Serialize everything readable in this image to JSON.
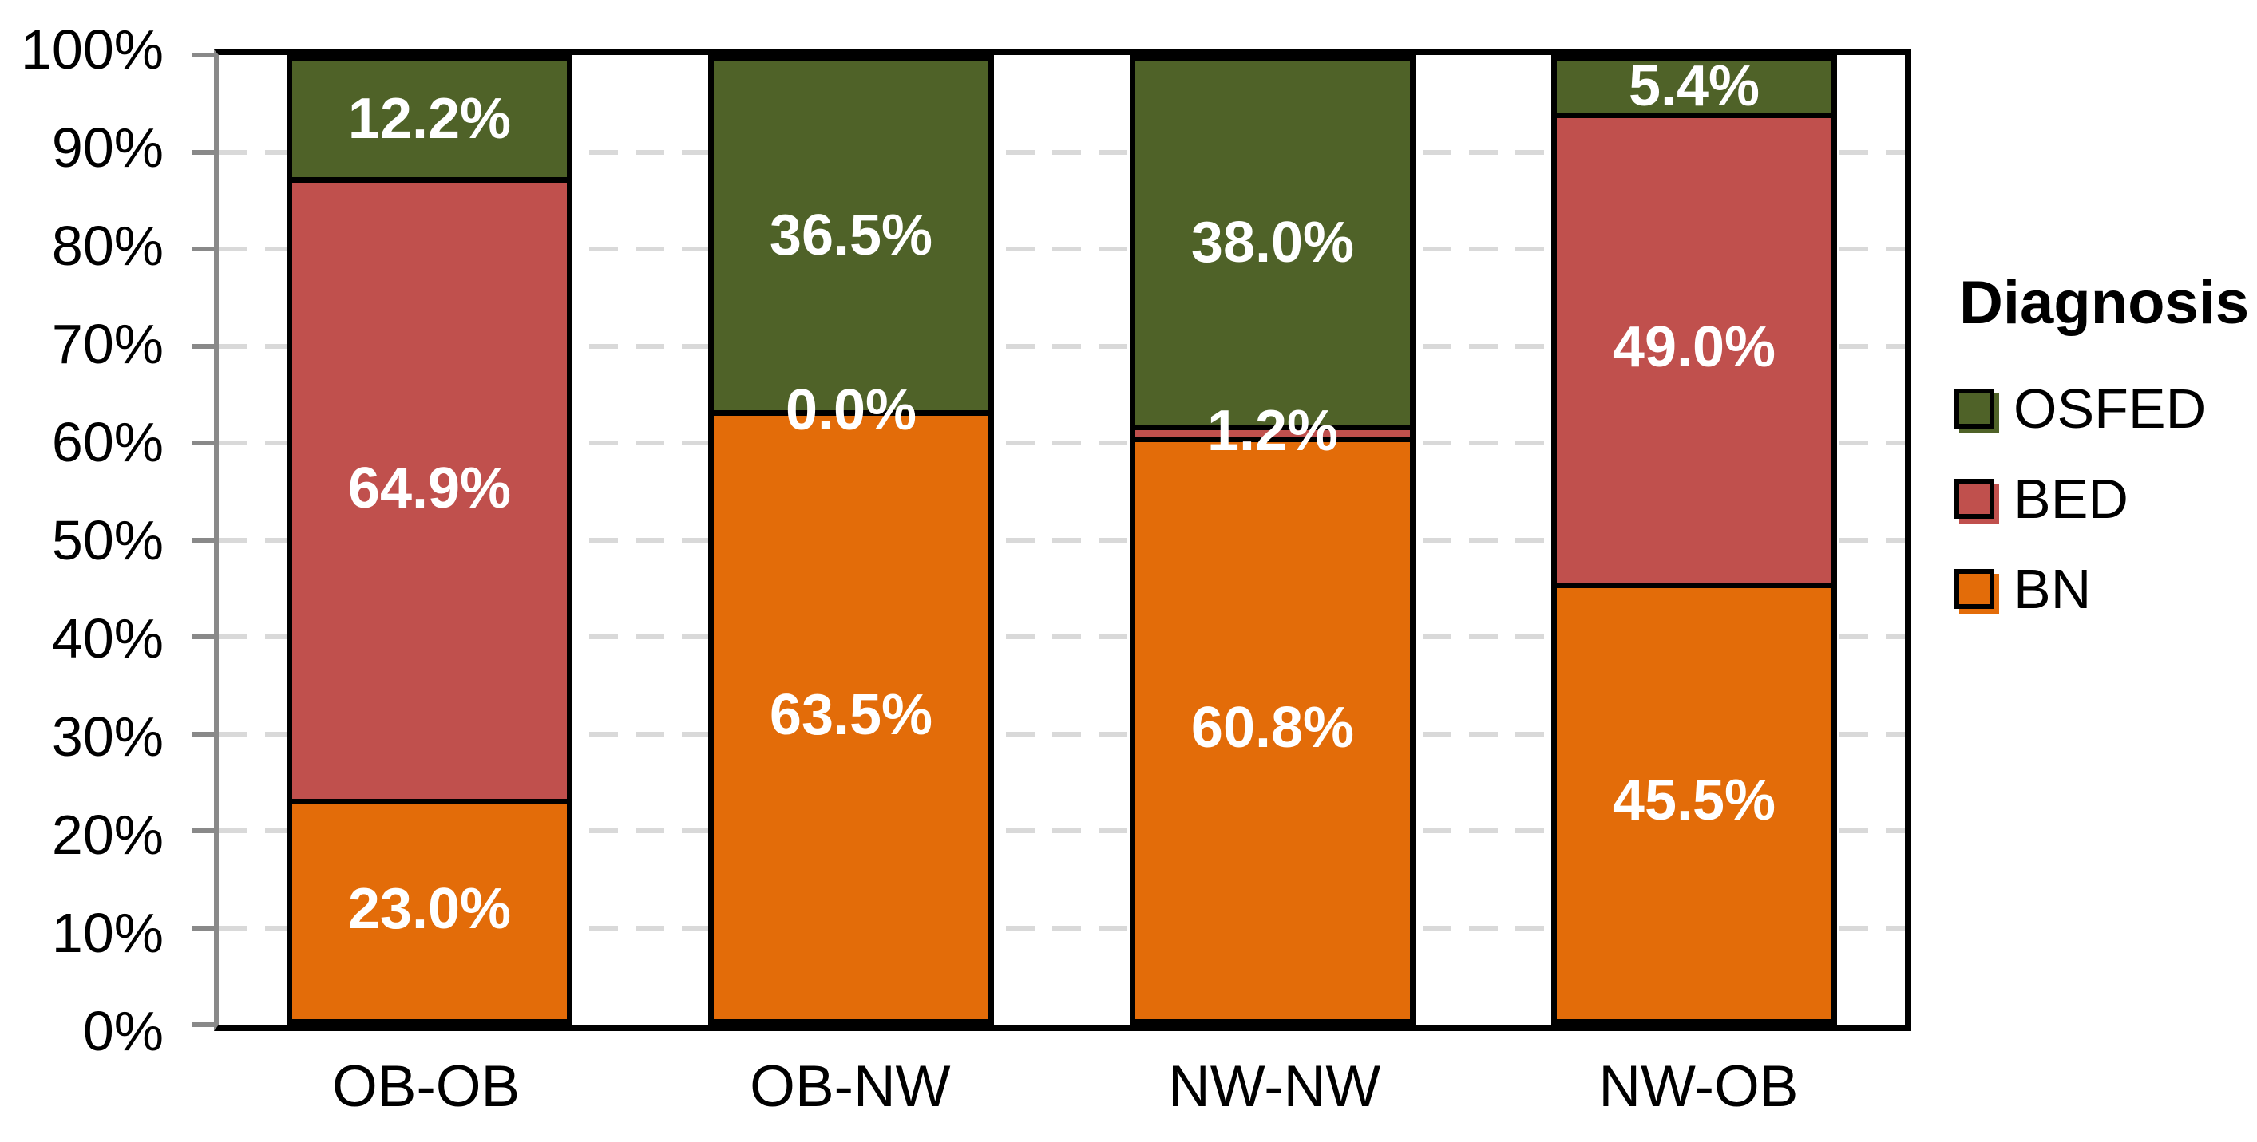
{
  "chart_data": {
    "type": "bar",
    "stacked": true,
    "percent_scale": true,
    "legend_title": "Diagnosis",
    "legend_position": "right",
    "grid": true,
    "categories": [
      "OB-OB",
      "OB-NW",
      "NW-NW",
      "NW-OB"
    ],
    "series": [
      {
        "name": "BN",
        "color": "#E36C09",
        "values": [
          23.0,
          63.5,
          60.8,
          45.5
        ],
        "labels": [
          "23.0%",
          "63.5%",
          "60.8%",
          "45.5%"
        ]
      },
      {
        "name": "BED",
        "color": "#C0504D",
        "values": [
          64.9,
          0.0,
          1.2,
          49.0
        ],
        "labels": [
          "64.9%",
          "0.0%",
          "1.2%",
          "49.0%"
        ]
      },
      {
        "name": "OSFED",
        "color": "#4F6228",
        "values": [
          12.2,
          36.5,
          38.0,
          5.4
        ],
        "labels": [
          "12.2%",
          "36.5%",
          "38.0%",
          "5.4%"
        ]
      }
    ],
    "legend_order": [
      "OSFED",
      "BED",
      "BN"
    ],
    "y_axis": {
      "min": 0,
      "max": 100,
      "tick_step": 10,
      "ticks": [
        "0%",
        "10%",
        "20%",
        "30%",
        "40%",
        "50%",
        "60%",
        "70%",
        "80%",
        "90%",
        "100%"
      ]
    },
    "colors": {
      "axis_line": "#898989",
      "gridline": "#D9D9D9",
      "bar_border": "#000000",
      "data_label": "#FFFFFF",
      "text": "#000000",
      "background": "#FFFFFF"
    }
  }
}
